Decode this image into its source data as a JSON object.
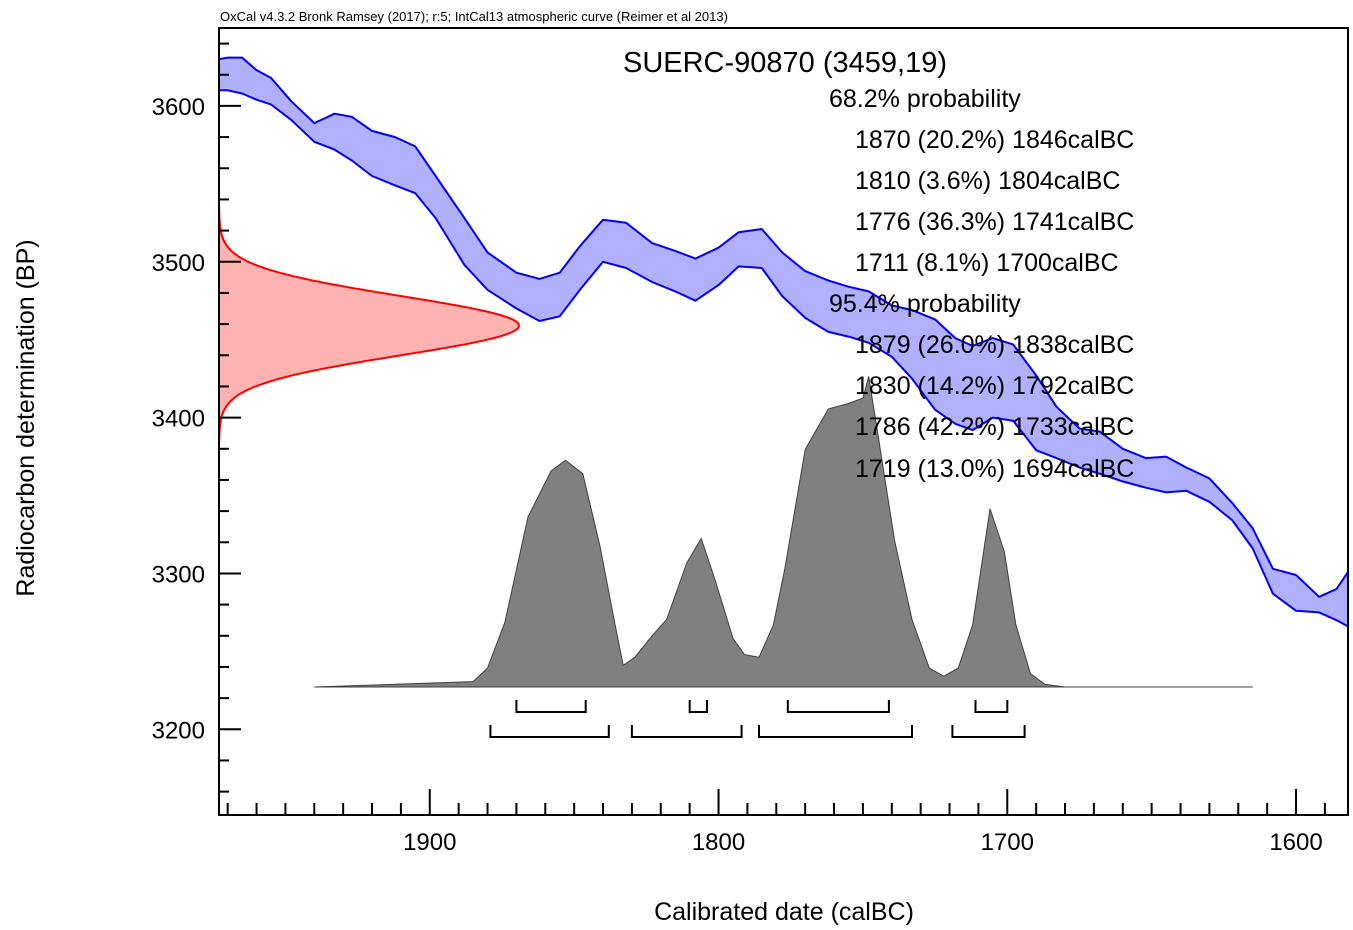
{
  "header": "OxCal v4.3.2 Bronk Ramsey (2017); r:5; IntCal13 atmospheric curve (Reimer et al 2013)",
  "chart_data": {
    "type": "area",
    "title": "SUERC-90870 (3459,19)",
    "xlabel": "Calibrated date (calBC)",
    "ylabel": "Radiocarbon determination (BP)",
    "xlim": [
      1973,
      1582
    ],
    "ylim": [
      3145,
      3650
    ],
    "x_reversed": true,
    "x_ticks": [
      1900,
      1800,
      1700,
      1600
    ],
    "x_tick_labels": [
      "1900",
      "1800",
      "1700",
      "1600"
    ],
    "y_ticks": [
      3200,
      3300,
      3400,
      3500,
      3600
    ],
    "y_tick_labels": [
      "3200",
      "3300",
      "3400",
      "3500",
      "3600"
    ],
    "colors": {
      "curve_fill": "#b0b0ff",
      "curve_line": "#0000ff",
      "measurement_fill": "#ffb2b2",
      "measurement_line": "#ff0000",
      "posterior_fill": "#808080",
      "posterior_line": "#404040"
    },
    "calibration_curve": {
      "name": "IntCal13 atmospheric curve",
      "x": [
        1973,
        1970,
        1965,
        1960,
        1955,
        1948,
        1940,
        1933,
        1927,
        1920,
        1912,
        1905,
        1898,
        1888,
        1880,
        1870,
        1862,
        1855,
        1848,
        1840,
        1832,
        1823,
        1815,
        1808,
        1800,
        1793,
        1785,
        1778,
        1770,
        1762,
        1755,
        1748,
        1740,
        1733,
        1725,
        1718,
        1712,
        1705,
        1698,
        1690,
        1683,
        1675,
        1668,
        1660,
        1652,
        1645,
        1638,
        1630,
        1622,
        1615,
        1608,
        1600,
        1592,
        1586,
        1582
      ],
      "upper": [
        3630,
        3631,
        3631,
        3623,
        3618,
        3603,
        3589,
        3595,
        3593,
        3584,
        3580,
        3574,
        3555,
        3528,
        3506,
        3493,
        3489,
        3493,
        3510,
        3527,
        3525,
        3512,
        3507,
        3502,
        3509,
        3519,
        3521,
        3506,
        3494,
        3488,
        3484,
        3481,
        3472,
        3469,
        3463,
        3451,
        3446,
        3451,
        3447,
        3427,
        3407,
        3393,
        3391,
        3380,
        3374,
        3375,
        3368,
        3361,
        3345,
        3329,
        3303,
        3299,
        3285,
        3290,
        3301
      ],
      "lower": [
        3610,
        3610,
        3608,
        3604,
        3601,
        3591,
        3577,
        3572,
        3565,
        3555,
        3549,
        3544,
        3528,
        3498,
        3482,
        3470,
        3462,
        3465,
        3482,
        3500,
        3496,
        3487,
        3481,
        3475,
        3485,
        3497,
        3496,
        3478,
        3464,
        3455,
        3452,
        3448,
        3439,
        3425,
        3405,
        3396,
        3392,
        3400,
        3398,
        3379,
        3374,
        3368,
        3364,
        3359,
        3355,
        3352,
        3353,
        3346,
        3334,
        3316,
        3287,
        3276,
        3275,
        3270,
        3266
      ]
    },
    "measurement": {
      "mean": 3459,
      "sd": 19
    },
    "posterior": {
      "name": "Calibrated probability",
      "x": [
        1940,
        1885,
        1880,
        1874,
        1866,
        1858,
        1853,
        1847,
        1841,
        1836,
        1833,
        1829,
        1823,
        1818,
        1811,
        1806,
        1801,
        1795,
        1791,
        1786,
        1781,
        1777,
        1770,
        1762,
        1755,
        1750,
        1748,
        1745,
        1739,
        1733,
        1727,
        1722,
        1717,
        1712,
        1706,
        1701,
        1697,
        1692,
        1687,
        1680,
        1615
      ],
      "y": [
        0.0,
        0.02,
        0.07,
        0.24,
        0.63,
        0.8,
        0.84,
        0.79,
        0.52,
        0.24,
        0.08,
        0.11,
        0.19,
        0.25,
        0.46,
        0.55,
        0.39,
        0.18,
        0.12,
        0.11,
        0.23,
        0.44,
        0.88,
        1.03,
        1.05,
        1.07,
        1.15,
        0.95,
        0.54,
        0.25,
        0.07,
        0.04,
        0.07,
        0.23,
        0.66,
        0.5,
        0.23,
        0.05,
        0.01,
        0.0,
        0.0
      ]
    },
    "ranges_68": [
      [
        1870,
        1846
      ],
      [
        1810,
        1804
      ],
      [
        1776,
        1741
      ],
      [
        1711,
        1700
      ]
    ],
    "ranges_95": [
      [
        1879,
        1838
      ],
      [
        1830,
        1792
      ],
      [
        1786,
        1733
      ],
      [
        1719,
        1694
      ]
    ],
    "probability_text": {
      "heading_68": "68.2% probability",
      "lines_68": [
        "1870 (20.2%) 1846calBC",
        "1810 (3.6%) 1804calBC",
        "1776 (36.3%) 1741calBC",
        "1711 (8.1%) 1700calBC"
      ],
      "heading_95": "95.4% probability",
      "lines_95": [
        "1879 (26.0%) 1838calBC",
        "1830 (14.2%) 1792calBC",
        "1786 (42.2%) 1733calBC",
        "1719 (13.0%) 1694calBC"
      ]
    }
  }
}
